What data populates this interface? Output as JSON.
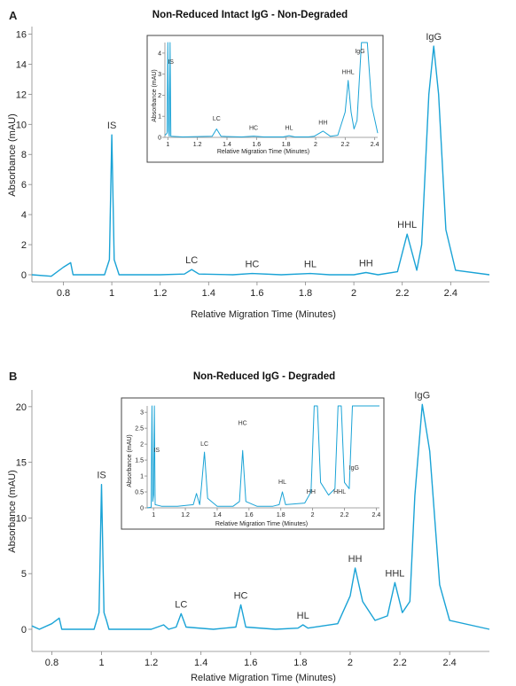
{
  "panels": [
    {
      "letter": "A",
      "title": "Non-Reduced Intact IgG - Non-Degraded",
      "xlabel": "Relative Migration Time (Minutes)",
      "ylabel": "Absorbance (mAU)",
      "xticks": [
        "0.8",
        "1",
        "1.2",
        "1.4",
        "1.6",
        "1.8",
        "2",
        "2.2",
        "2.4"
      ],
      "yticks": [
        "0",
        "2",
        "4",
        "6",
        "8",
        "10",
        "12",
        "14",
        "16"
      ],
      "peak_labels": [
        {
          "text": "IS",
          "x": 1.0,
          "y": 9.3
        },
        {
          "text": "LC",
          "x": 1.33,
          "y": 0.35
        },
        {
          "text": "HC",
          "x": 1.58,
          "y": 0.08
        },
        {
          "text": "HL",
          "x": 1.82,
          "y": 0.08
        },
        {
          "text": "HH",
          "x": 2.05,
          "y": 0.15
        },
        {
          "text": "HHL",
          "x": 2.22,
          "y": 2.7
        },
        {
          "text": "IgG",
          "x": 2.33,
          "y": 15.2
        }
      ],
      "inset": {
        "xlabel": "Relative Migration Time (Minutes)",
        "ylabel": "Absorbance (mAU)",
        "xticks": [
          "1",
          "1.2",
          "1.4",
          "1.6",
          "1.8",
          "2",
          "2.2",
          "2.4"
        ],
        "yticks": [
          "0",
          "1",
          "2",
          "3",
          "4"
        ],
        "peak_labels": [
          "IS",
          "LC",
          "HC",
          "HL",
          "HH",
          "HHL",
          "IgG"
        ]
      }
    },
    {
      "letter": "B",
      "title": "Non-Reduced IgG - Degraded",
      "xlabel": "Relative Migration Time (Minutes)",
      "ylabel": "Absorbance (mAU)",
      "xticks": [
        "0.8",
        "1",
        "1.2",
        "1.4",
        "1.6",
        "1.8",
        "2",
        "2.2",
        "2.4"
      ],
      "yticks": [
        "0",
        "5",
        "10",
        "15",
        "20"
      ],
      "peak_labels": [
        {
          "text": "IS",
          "x": 1.0,
          "y": 13.0
        },
        {
          "text": "LC",
          "x": 1.32,
          "y": 1.4
        },
        {
          "text": "HC",
          "x": 1.56,
          "y": 2.2
        },
        {
          "text": "HL",
          "x": 1.81,
          "y": 0.4
        },
        {
          "text": "HH",
          "x": 2.02,
          "y": 5.5
        },
        {
          "text": "HHL",
          "x": 2.18,
          "y": 4.2
        },
        {
          "text": "IgG",
          "x": 2.29,
          "y": 20.2
        }
      ],
      "inset": {
        "xlabel": "Relative Migration Time (Minutes)",
        "ylabel": "Absorbance (mAU)",
        "xticks": [
          "1",
          "1.2",
          "1.4",
          "1.6",
          "1.8",
          "2",
          "2.2",
          "2.4"
        ],
        "yticks": [
          "0",
          "0.5",
          "1",
          "1.5",
          "2",
          "2.5",
          "3"
        ],
        "peak_labels": [
          "IS",
          "LC",
          "HC",
          "HL",
          "HH",
          "HHL",
          "IgG"
        ]
      }
    }
  ],
  "chart_data": [
    {
      "type": "line",
      "title": "Non-Reduced Intact IgG - Non-Degraded",
      "xlabel": "Relative Migration Time (Minutes)",
      "ylabel": "Absorbance (mAU)",
      "xlim": [
        0.67,
        2.56
      ],
      "ylim": [
        -0.5,
        16.5
      ],
      "series": [
        {
          "x": [
            0.67,
            0.75,
            0.8,
            0.83,
            0.84,
            0.9,
            0.97,
            0.99,
            1.0,
            1.01,
            1.03,
            1.1,
            1.2,
            1.3,
            1.33,
            1.36,
            1.5,
            1.58,
            1.7,
            1.82,
            1.9,
            2.0,
            2.05,
            2.1,
            2.18,
            2.22,
            2.26,
            2.28,
            2.31,
            2.33,
            2.35,
            2.38,
            2.42,
            2.56
          ],
          "y": [
            0,
            -0.1,
            0.5,
            0.8,
            0,
            0,
            0,
            1.0,
            9.3,
            1.0,
            0,
            0,
            0,
            0.05,
            0.35,
            0.05,
            0,
            0.08,
            0,
            0.08,
            0,
            0,
            0.15,
            0,
            0.2,
            2.7,
            0.3,
            2.0,
            12.0,
            15.2,
            12.0,
            3.0,
            0.3,
            0
          ]
        }
      ],
      "annotations": [
        "IS",
        "LC",
        "HC",
        "HL",
        "HH",
        "HHL",
        "IgG"
      ],
      "inset": {
        "xlim": [
          0.98,
          2.42
        ],
        "ylim": [
          0,
          4.5
        ],
        "x": [
          0.98,
          0.995,
          1.0,
          1.005,
          1.01,
          1.015,
          1.02,
          1.1,
          1.3,
          1.33,
          1.36,
          1.5,
          1.58,
          1.65,
          1.78,
          1.82,
          1.86,
          1.95,
          1.99,
          2.05,
          2.1,
          2.15,
          2.2,
          2.22,
          2.24,
          2.26,
          2.28,
          2.31,
          2.33,
          2.35,
          2.38,
          2.42
        ],
        "y": [
          0.1,
          0.2,
          4.5,
          0.3,
          0.05,
          4.5,
          0.05,
          0.02,
          0.05,
          0.4,
          0.05,
          0.02,
          0.06,
          0.02,
          0.02,
          0.08,
          0.02,
          0.02,
          0.05,
          0.3,
          0.05,
          0.1,
          1.2,
          2.7,
          1.2,
          0.4,
          0.8,
          4.5,
          4.5,
          4.5,
          1.5,
          0.2
        ]
      }
    },
    {
      "type": "line",
      "title": "Non-Reduced IgG - Degraded",
      "xlabel": "Relative Migration Time (Minutes)",
      "ylabel": "Absorbance (mAU)",
      "xlim": [
        0.72,
        2.56
      ],
      "ylim": [
        -1.0,
        21.5
      ],
      "series": [
        {
          "x": [
            0.72,
            0.75,
            0.8,
            0.83,
            0.84,
            0.9,
            0.97,
            0.99,
            1.0,
            1.01,
            1.02,
            1.03,
            1.1,
            1.2,
            1.25,
            1.27,
            1.3,
            1.32,
            1.34,
            1.45,
            1.54,
            1.56,
            1.58,
            1.7,
            1.79,
            1.81,
            1.83,
            1.95,
            2.0,
            2.02,
            2.05,
            2.1,
            2.15,
            2.18,
            2.21,
            2.24,
            2.26,
            2.29,
            2.32,
            2.36,
            2.4,
            2.56
          ],
          "y": [
            0.3,
            0,
            0.5,
            1.0,
            0,
            0,
            0,
            1.5,
            13.0,
            1.5,
            0.8,
            0,
            0,
            0,
            0.4,
            0,
            0.2,
            1.4,
            0.2,
            0,
            0.2,
            2.2,
            0.2,
            0,
            0.1,
            0.4,
            0.1,
            0.5,
            3.0,
            5.5,
            2.5,
            0.8,
            1.2,
            4.2,
            1.5,
            2.5,
            12.0,
            20.2,
            16.0,
            4.0,
            0.8,
            0
          ]
        }
      ],
      "annotations": [
        "IS",
        "LC",
        "HC",
        "HL",
        "HH",
        "HHL",
        "IgG"
      ],
      "inset": {
        "xlim": [
          0.96,
          2.42
        ],
        "ylim": [
          0,
          3.2
        ],
        "x": [
          0.96,
          0.985,
          0.99,
          0.995,
          1.0,
          1.005,
          1.01,
          1.05,
          1.15,
          1.25,
          1.27,
          1.29,
          1.3,
          1.32,
          1.34,
          1.4,
          1.5,
          1.54,
          1.56,
          1.58,
          1.65,
          1.75,
          1.79,
          1.81,
          1.83,
          1.95,
          1.99,
          2.01,
          2.02,
          2.03,
          2.05,
          2.1,
          2.14,
          2.16,
          2.17,
          2.18,
          2.2,
          2.23,
          2.25,
          2.26,
          2.27,
          2.29,
          2.32,
          2.35,
          2.38,
          2.42
        ],
        "y": [
          0,
          0.02,
          3.2,
          0.2,
          0.4,
          3.2,
          0.1,
          0.05,
          0.05,
          0.1,
          0.45,
          0.1,
          0.6,
          1.75,
          0.3,
          0.05,
          0.05,
          0.2,
          1.8,
          0.2,
          0.05,
          0.05,
          0.1,
          0.5,
          0.1,
          0.15,
          0.5,
          3.2,
          3.2,
          3.2,
          0.8,
          0.4,
          0.6,
          3.2,
          3.2,
          3.2,
          0.8,
          0.6,
          3.2,
          3.2,
          3.2,
          3.2,
          3.2,
          3.2,
          3.2,
          3.2
        ]
      }
    }
  ]
}
